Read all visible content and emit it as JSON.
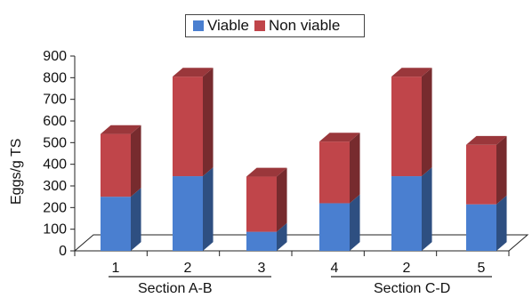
{
  "chart_data": {
    "type": "bar",
    "stacked": true,
    "categories": [
      "1",
      "2",
      "3",
      "4",
      "2",
      "5"
    ],
    "groups": [
      {
        "label": "Section A-B",
        "categories": [
          "1",
          "2",
          "3"
        ]
      },
      {
        "label": "Section C-D",
        "categories": [
          "4",
          "2",
          "5"
        ]
      }
    ],
    "series": [
      {
        "name": "Viable",
        "color": "#4a7fd0",
        "values": [
          250,
          345,
          88,
          220,
          345,
          215
        ]
      },
      {
        "name": "Non viable",
        "color": "#c0454a",
        "values": [
          290,
          460,
          255,
          285,
          460,
          275
        ]
      }
    ],
    "ylabel": "Eggs/g TS",
    "ylim": [
      0,
      900
    ],
    "yticks": [
      0,
      100,
      200,
      300,
      400,
      500,
      600,
      700,
      800,
      900
    ],
    "legend_position": "top-center"
  }
}
